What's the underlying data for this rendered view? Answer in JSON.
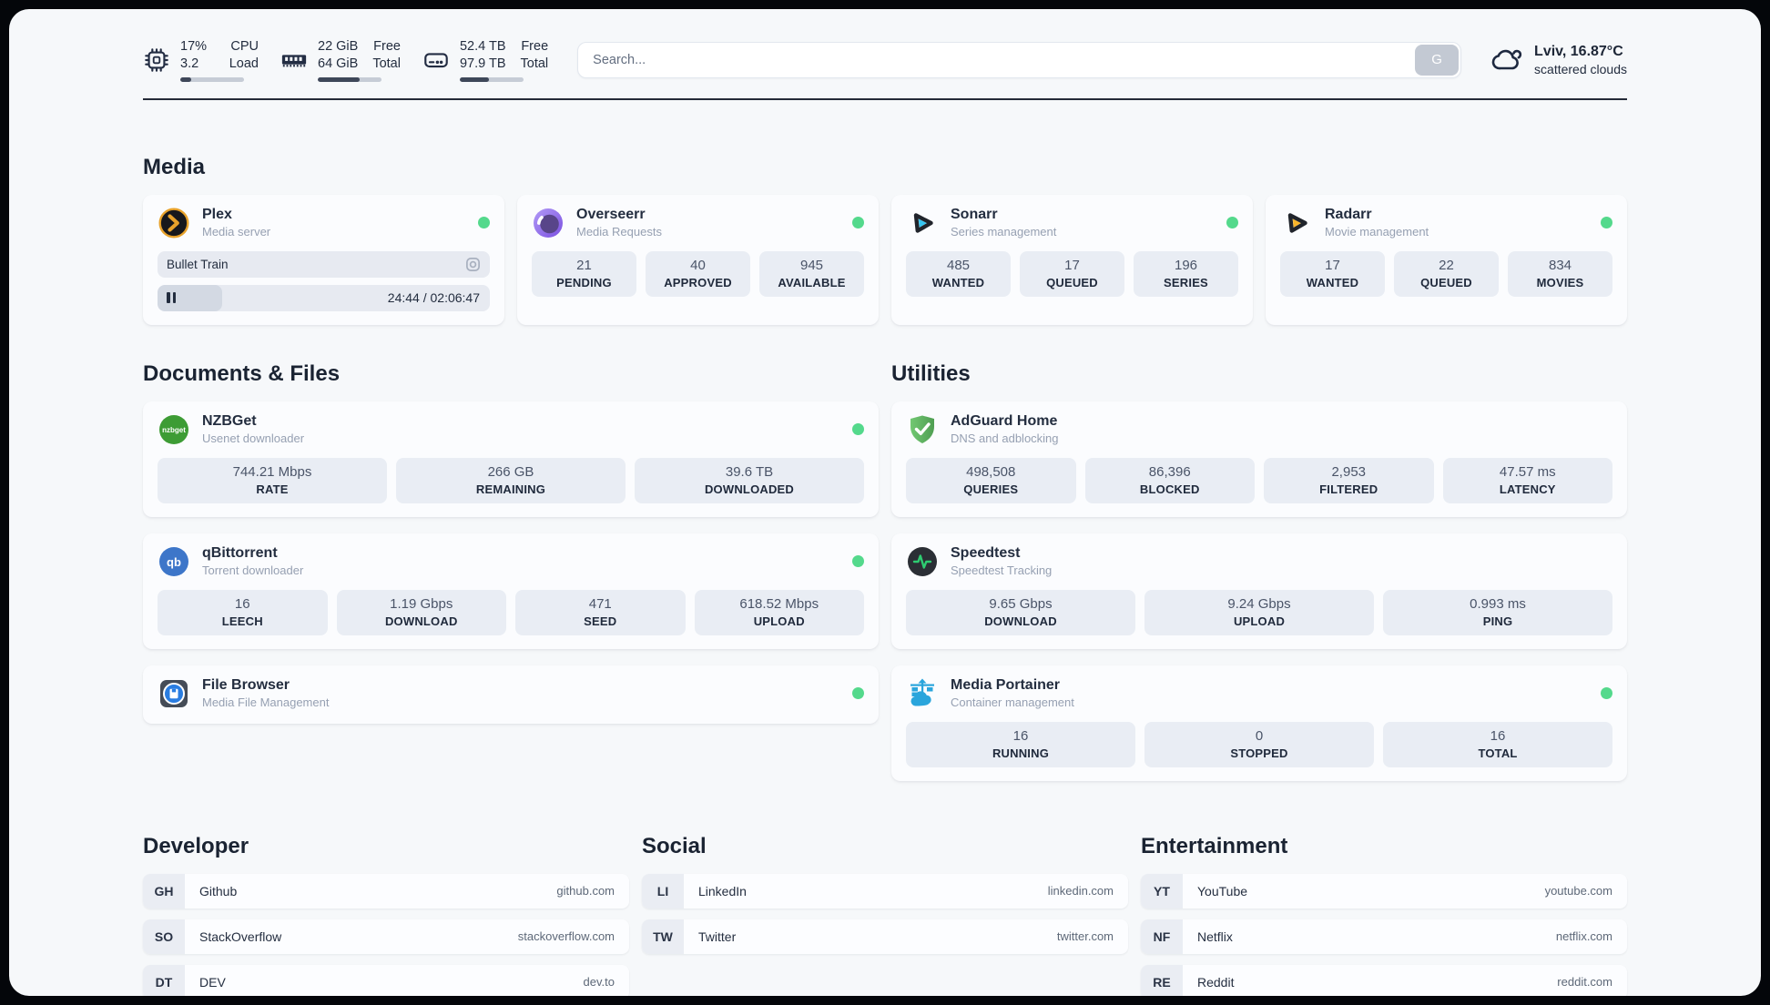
{
  "header": {
    "monitors": [
      {
        "name": "cpu",
        "value_top": "17%",
        "value_bottom": "3.2",
        "label_top": "CPU",
        "label_bottom": "Load",
        "progress_pct": 17
      },
      {
        "name": "memory",
        "value_top": "22 GiB",
        "value_bottom": "64 GiB",
        "label_top": "Free",
        "label_bottom": "Total",
        "progress_pct": 66
      },
      {
        "name": "disk",
        "value_top": "52.4 TB",
        "value_bottom": "97.9 TB",
        "label_top": "Free",
        "label_bottom": "Total",
        "progress_pct": 46
      }
    ],
    "search": {
      "placeholder": "Search...",
      "button_label": "G"
    },
    "weather": {
      "location": "Lviv, 16.87°C",
      "condition": "scattered clouds"
    }
  },
  "sections": {
    "media": {
      "title": "Media",
      "plex": {
        "name": "Plex",
        "subtitle": "Media server",
        "status": "online",
        "now_playing": "Bullet Train",
        "time_display": "24:44 / 02:06:47",
        "progress_pct": 19.5
      },
      "overseerr": {
        "name": "Overseerr",
        "subtitle": "Media Requests",
        "status": "online",
        "stats": [
          {
            "value": "21",
            "label": "PENDING"
          },
          {
            "value": "40",
            "label": "APPROVED"
          },
          {
            "value": "945",
            "label": "AVAILABLE"
          }
        ]
      },
      "sonarr": {
        "name": "Sonarr",
        "subtitle": "Series management",
        "status": "online",
        "stats": [
          {
            "value": "485",
            "label": "WANTED"
          },
          {
            "value": "17",
            "label": "QUEUED"
          },
          {
            "value": "196",
            "label": "SERIES"
          }
        ]
      },
      "radarr": {
        "name": "Radarr",
        "subtitle": "Movie management",
        "status": "online",
        "stats": [
          {
            "value": "17",
            "label": "WANTED"
          },
          {
            "value": "22",
            "label": "QUEUED"
          },
          {
            "value": "834",
            "label": "MOVIES"
          }
        ]
      }
    },
    "documents": {
      "title": "Documents & Files",
      "nzbget": {
        "name": "NZBGet",
        "subtitle": "Usenet downloader",
        "status": "online",
        "stats": [
          {
            "value": "744.21 Mbps",
            "label": "RATE"
          },
          {
            "value": "266 GB",
            "label": "REMAINING"
          },
          {
            "value": "39.6 TB",
            "label": "DOWNLOADED"
          }
        ]
      },
      "qbittorrent": {
        "name": "qBittorrent",
        "subtitle": "Torrent downloader",
        "status": "online",
        "stats": [
          {
            "value": "16",
            "label": "LEECH"
          },
          {
            "value": "1.19 Gbps",
            "label": "DOWNLOAD"
          },
          {
            "value": "471",
            "label": "SEED"
          },
          {
            "value": "618.52 Mbps",
            "label": "UPLOAD"
          }
        ]
      },
      "filebrowser": {
        "name": "File Browser",
        "subtitle": "Media File Management",
        "status": "online"
      }
    },
    "utilities": {
      "title": "Utilities",
      "adguard": {
        "name": "AdGuard Home",
        "subtitle": "DNS and adblocking",
        "stats": [
          {
            "value": "498,508",
            "label": "QUERIES"
          },
          {
            "value": "86,396",
            "label": "BLOCKED"
          },
          {
            "value": "2,953",
            "label": "FILTERED"
          },
          {
            "value": "47.57 ms",
            "label": "LATENCY"
          }
        ]
      },
      "speedtest": {
        "name": "Speedtest",
        "subtitle": "Speedtest Tracking",
        "stats": [
          {
            "value": "9.65 Gbps",
            "label": "DOWNLOAD"
          },
          {
            "value": "9.24 Gbps",
            "label": "UPLOAD"
          },
          {
            "value": "0.993 ms",
            "label": "PING"
          }
        ]
      },
      "portainer": {
        "name": "Media Portainer",
        "subtitle": "Container management",
        "status": "online",
        "stats": [
          {
            "value": "16",
            "label": "RUNNING"
          },
          {
            "value": "0",
            "label": "STOPPED"
          },
          {
            "value": "16",
            "label": "TOTAL"
          }
        ]
      }
    },
    "developer": {
      "title": "Developer",
      "links": [
        {
          "abbr": "GH",
          "name": "Github",
          "url": "github.com"
        },
        {
          "abbr": "SO",
          "name": "StackOverflow",
          "url": "stackoverflow.com"
        },
        {
          "abbr": "DT",
          "name": "DEV",
          "url": "dev.to"
        }
      ]
    },
    "social": {
      "title": "Social",
      "links": [
        {
          "abbr": "LI",
          "name": "LinkedIn",
          "url": "linkedin.com"
        },
        {
          "abbr": "TW",
          "name": "Twitter",
          "url": "twitter.com"
        }
      ]
    },
    "entertainment": {
      "title": "Entertainment",
      "links": [
        {
          "abbr": "YT",
          "name": "YouTube",
          "url": "youtube.com"
        },
        {
          "abbr": "NF",
          "name": "Netflix",
          "url": "netflix.com"
        },
        {
          "abbr": "RE",
          "name": "Reddit",
          "url": "reddit.com"
        }
      ]
    }
  },
  "colors": {
    "status_online": "#54d98c",
    "text_dark": "#232d3f",
    "stat_box_bg": "#e9edf4"
  }
}
